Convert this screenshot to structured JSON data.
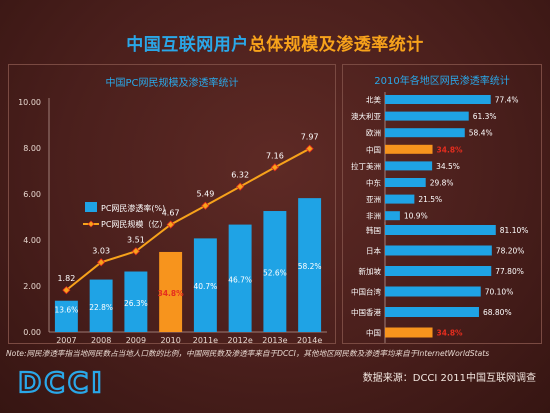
{
  "title": {
    "part1": "中国互联网用户",
    "part2": "总体规模及渗透率统计"
  },
  "note": "Note:网民渗透率指当地网民数占当地人口数的比例，中国网民数及渗透率来自于DCCI，其他地区网民数及渗透率均来自于InternetWorldStats",
  "logo_text": "DCCI",
  "source": "数据来源：DCCI 2011中国互联网调查",
  "colors": {
    "blue": "#1fa3e5",
    "orange": "#f7941d",
    "line": "#f7a21b",
    "bg": "#4a1f1c"
  },
  "chart_data": [
    {
      "type": "bar",
      "title": "中国PC网民规模及渗透率统计",
      "categories": [
        "2007",
        "2008",
        "2009",
        "2010",
        "2011e",
        "2012e",
        "2013e",
        "2014e"
      ],
      "ylim": [
        0,
        10
      ],
      "yticks": [
        "0.00",
        "2.00",
        "4.00",
        "6.00",
        "8.00",
        "10.00"
      ],
      "series": [
        {
          "name": "PC网民渗透率(%)",
          "type": "bar",
          "values": [
            1.36,
            2.28,
            2.63,
            3.48,
            4.07,
            4.67,
            5.26,
            5.82
          ],
          "labels": [
            "13.6%",
            "22.8%",
            "26.3%",
            "34.8%",
            "40.7%",
            "46.7%",
            "52.6%",
            "58.2%"
          ]
        },
        {
          "name": "PC网民规模（亿）",
          "type": "line",
          "values": [
            1.82,
            3.03,
            3.51,
            4.67,
            5.49,
            6.32,
            7.16,
            7.97
          ],
          "labels": [
            "1.82",
            "3.03",
            "3.51",
            "4.67",
            "5.49",
            "6.32",
            "7.16",
            "7.97"
          ]
        }
      ],
      "highlight_index": 3
    },
    {
      "type": "bar",
      "title": "2010年各地区网民渗透率统计",
      "orientation": "horizontal",
      "groups": [
        {
          "categories": [
            "北美",
            "澳大利亚",
            "欧洲",
            "中国",
            "拉丁美洲",
            "中东",
            "亚洲",
            "非洲"
          ],
          "values": [
            77.4,
            61.3,
            58.4,
            34.8,
            34.5,
            29.8,
            21.5,
            10.9
          ],
          "labels": [
            "77.4%",
            "61.3%",
            "58.4%",
            "34.8%",
            "34.5%",
            "29.8%",
            "21.5%",
            "10.9%"
          ]
        },
        {
          "categories": [
            "韩国",
            "日本",
            "新加坡",
            "中国台湾",
            "中国香港",
            "中国"
          ],
          "values": [
            81.1,
            78.2,
            77.8,
            70.1,
            68.8,
            34.8
          ],
          "labels": [
            "81.10%",
            "78.20%",
            "77.80%",
            "70.10%",
            "68.80%",
            "34.8%"
          ]
        }
      ],
      "highlight": "中国"
    }
  ]
}
